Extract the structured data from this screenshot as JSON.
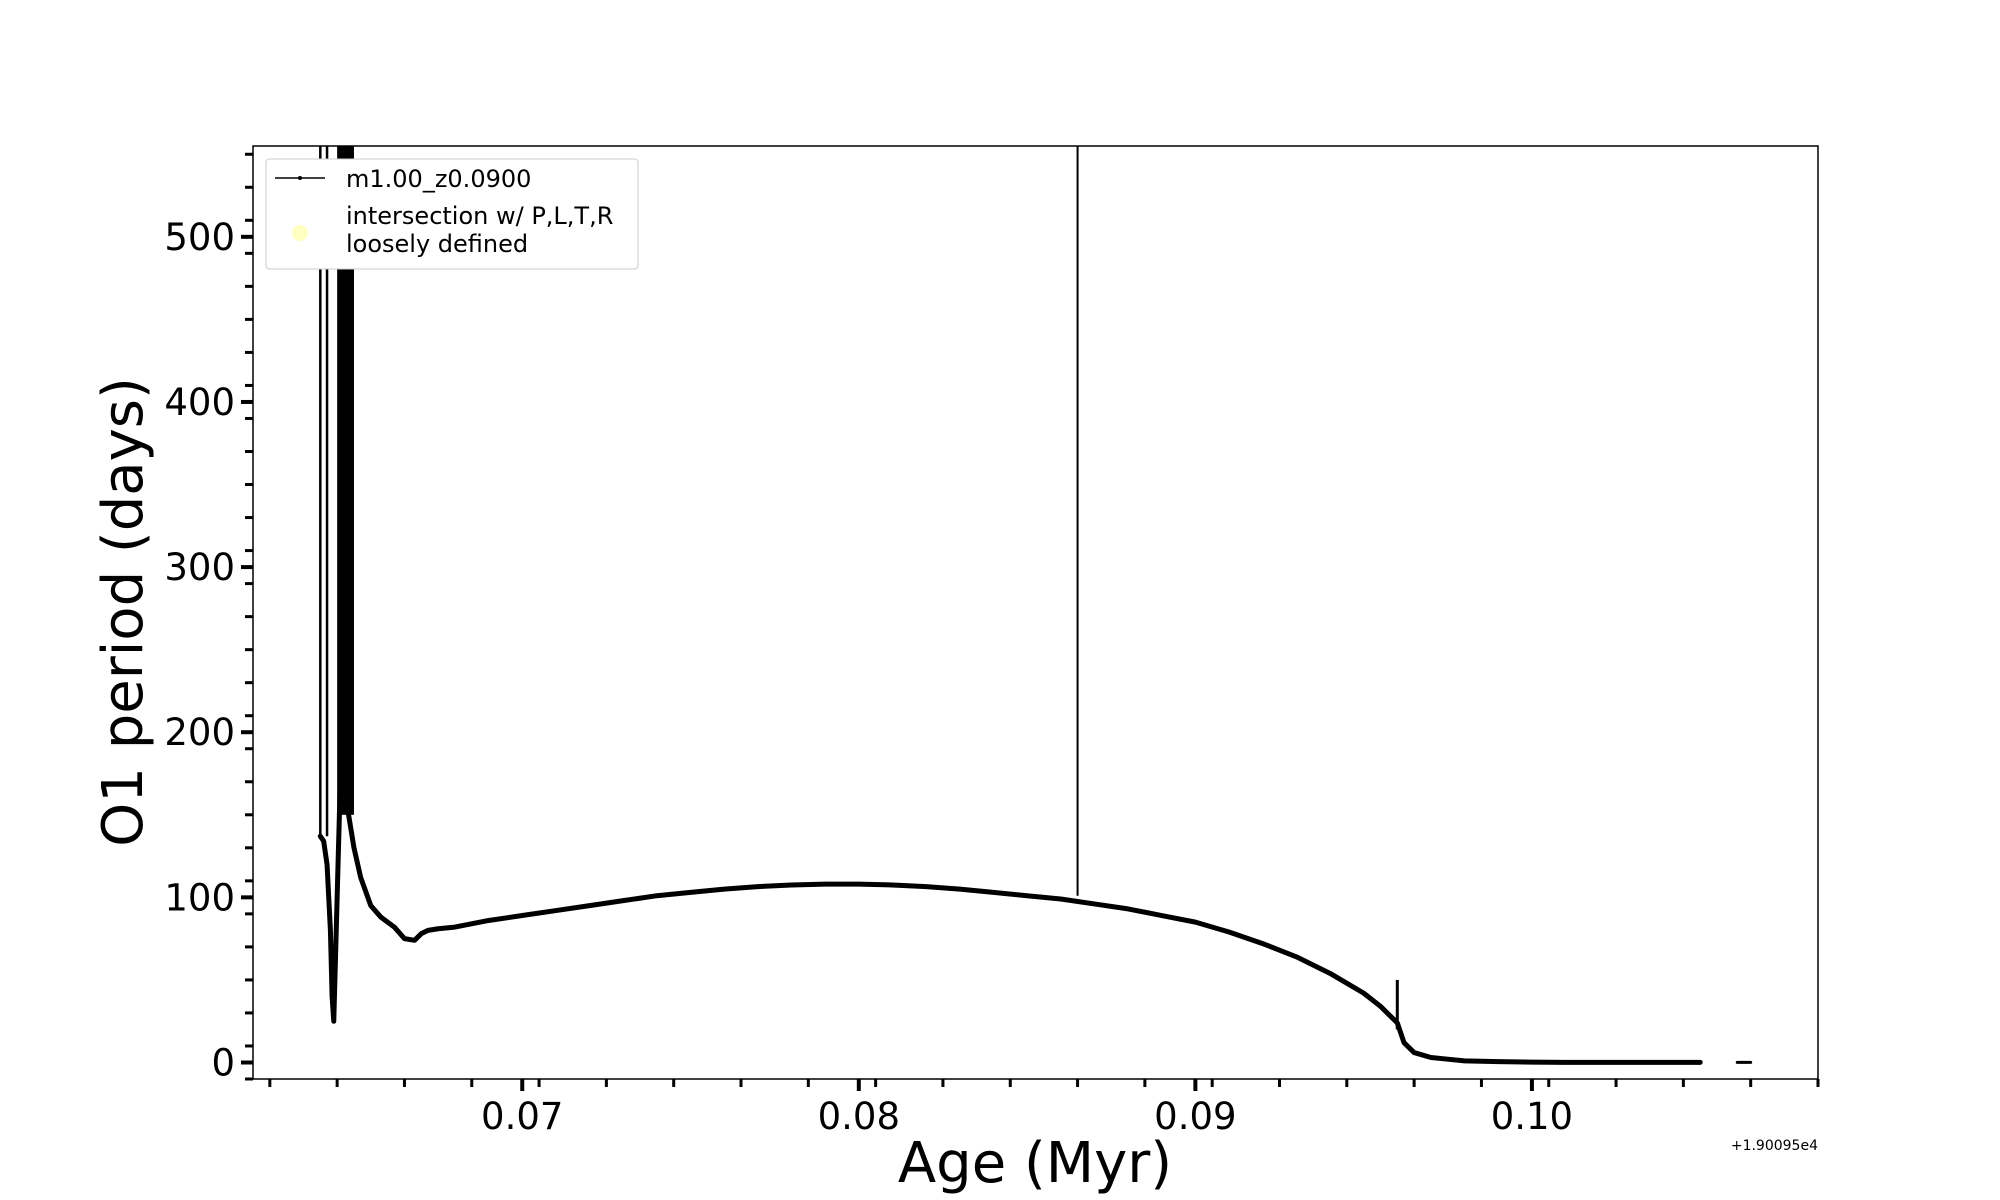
{
  "chart_data": {
    "type": "line",
    "title": "",
    "xlabel": "Age (Myr)",
    "ylabel": "O1 period (days)",
    "x_offset_label": "+1.90095e4",
    "xlim": [
      0.062,
      0.1085
    ],
    "ylim": [
      -10,
      555
    ],
    "x_ticks": [
      0.07,
      0.08,
      0.09,
      0.1
    ],
    "x_tick_labels": [
      "0.07",
      "0.08",
      "0.09",
      "0.10"
    ],
    "y_ticks": [
      0,
      100,
      200,
      300,
      400,
      500
    ],
    "y_tick_labels": [
      "0",
      "100",
      "200",
      "300",
      "400",
      "500"
    ],
    "grid": false,
    "legend_position": "top-left",
    "legend": [
      {
        "label": "m1.00_z0.0900",
        "color": "#000000"
      },
      {
        "label": "intersection w/ P,L,T,R\nloosely defined",
        "color": "#ffff99"
      }
    ],
    "series": [
      {
        "name": "m1.00_z0.0900",
        "color": "#000000",
        "x": [
          0.064,
          0.0641,
          0.0642,
          0.0643,
          0.06435,
          0.0644,
          0.0645,
          0.0646,
          0.0648,
          0.065,
          0.0652,
          0.0655,
          0.0658,
          0.0662,
          0.0665,
          0.0668,
          0.067,
          0.0672,
          0.0675,
          0.068,
          0.069,
          0.07,
          0.071,
          0.072,
          0.073,
          0.074,
          0.075,
          0.076,
          0.077,
          0.078,
          0.079,
          0.08,
          0.081,
          0.082,
          0.083,
          0.084,
          0.085,
          0.086,
          0.087,
          0.088,
          0.089,
          0.09,
          0.091,
          0.092,
          0.093,
          0.094,
          0.095,
          0.0955,
          0.0958,
          0.096,
          0.0962,
          0.0965,
          0.097,
          0.0975,
          0.098,
          0.099,
          0.1,
          0.101,
          0.102,
          0.103,
          0.104,
          0.105
        ],
        "y": [
          137,
          134,
          120,
          80,
          40,
          25,
          100,
          175,
          155,
          130,
          112,
          95,
          88,
          82,
          75,
          74,
          78,
          80,
          81,
          82,
          86,
          89,
          92,
          95,
          98,
          101,
          103,
          105,
          106.5,
          107.5,
          108,
          108,
          107.5,
          106.5,
          105,
          103,
          101,
          99,
          96,
          93,
          89,
          85,
          79,
          72,
          64,
          54,
          42,
          34,
          28,
          24,
          12,
          6,
          3,
          2,
          1,
          0.5,
          0.2,
          0.1,
          0.1,
          0.1,
          0.1,
          0.1
        ]
      },
      {
        "name": "",
        "color": "#000000",
        "x": [
          0.1061,
          0.1063,
          0.1065
        ],
        "y": [
          0.1,
          0.1,
          0.1
        ]
      }
    ],
    "annotations": {
      "vertical_line_x": 0.0865,
      "noisy_band_x": [
        0.0645,
        0.065
      ],
      "noisy_band_y": [
        150,
        555
      ],
      "early_spike_x": [
        0.064,
        0.0642
      ],
      "early_spike_y": [
        137,
        555
      ],
      "spike": {
        "x": 0.096,
        "y_low": 20,
        "y_high": 50
      }
    }
  }
}
